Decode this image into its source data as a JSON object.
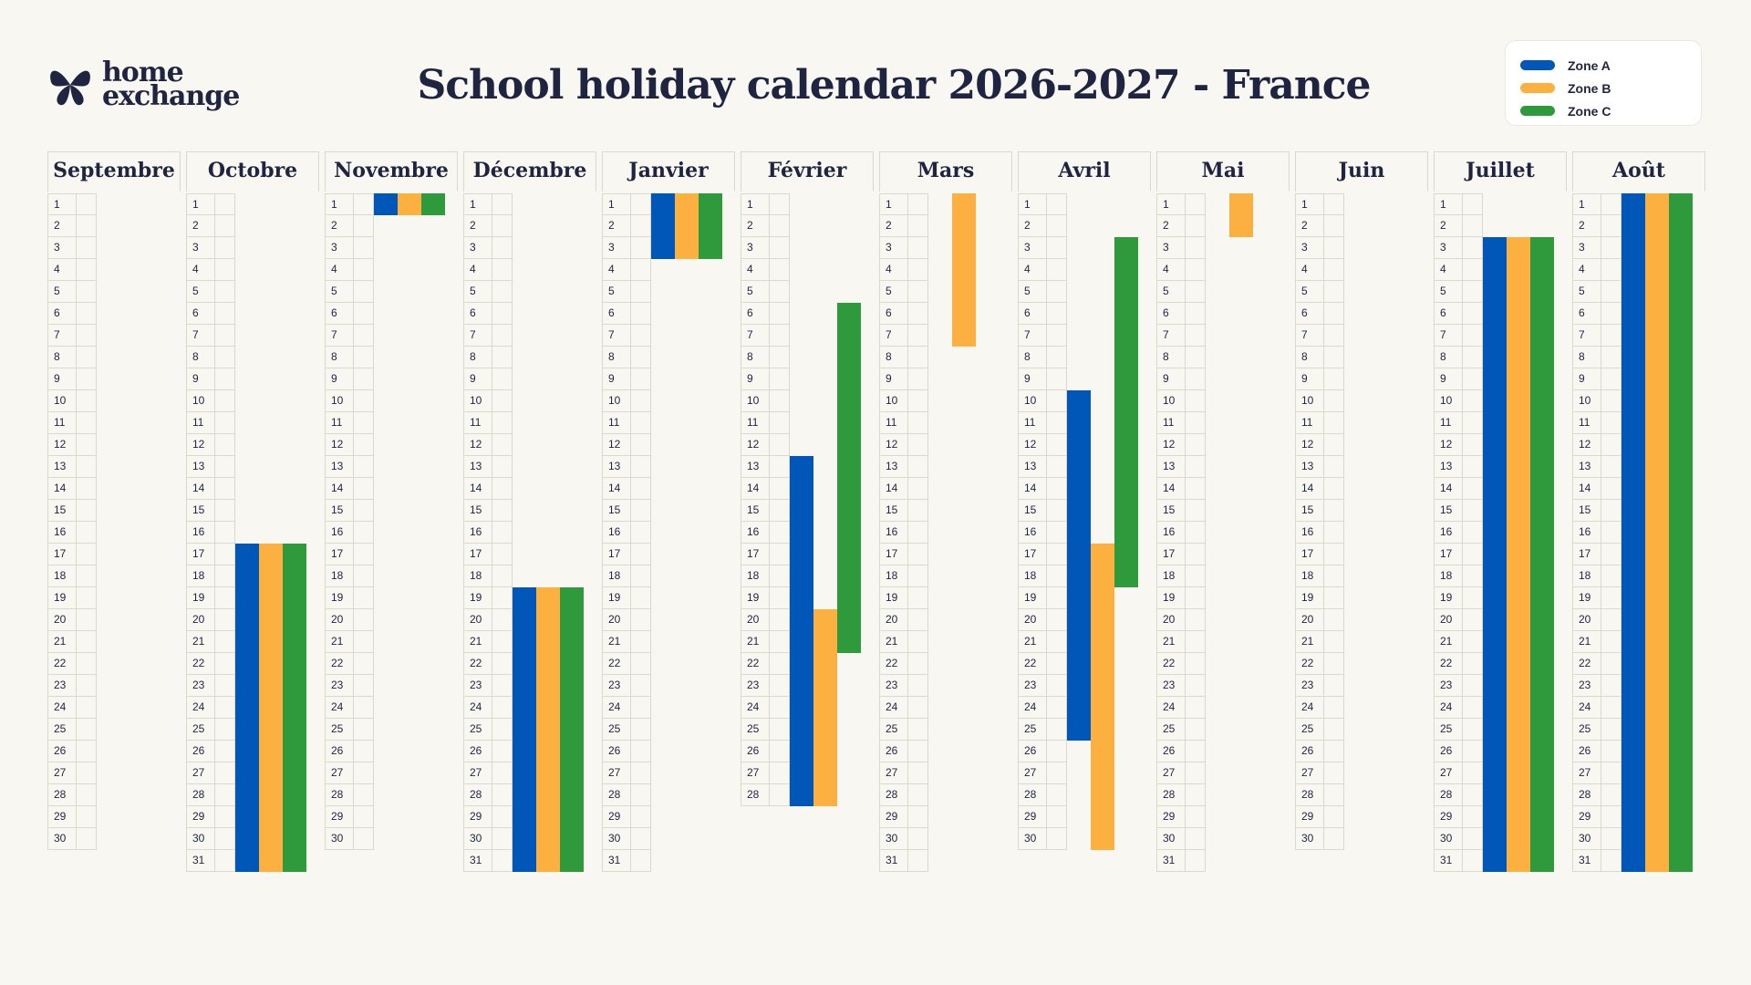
{
  "brand": {
    "line1": "home",
    "line2": "exchange"
  },
  "title": "School holiday calendar 2026-2027 - France",
  "colors": {
    "zone_a": "#0057b8",
    "zone_b": "#fbb040",
    "zone_c": "#2e9a3c"
  },
  "legend": [
    {
      "label": "Zone A",
      "color": "#0057b8"
    },
    {
      "label": "Zone B",
      "color": "#fbb040"
    },
    {
      "label": "Zone C",
      "color": "#2e9a3c"
    }
  ],
  "chart_data": {
    "type": "table",
    "months": [
      {
        "name": "Septembre",
        "days": 30,
        "holidays": []
      },
      {
        "name": "Octobre",
        "days": 31,
        "holidays": [
          {
            "zone": "A",
            "start": 17,
            "end": 31
          },
          {
            "zone": "B",
            "start": 17,
            "end": 31
          },
          {
            "zone": "C",
            "start": 17,
            "end": 31
          }
        ]
      },
      {
        "name": "Novembre",
        "days": 30,
        "holidays": [
          {
            "zone": "A",
            "start": 1,
            "end": 1
          },
          {
            "zone": "B",
            "start": 1,
            "end": 1
          },
          {
            "zone": "C",
            "start": 1,
            "end": 1
          }
        ]
      },
      {
        "name": "Décembre",
        "days": 31,
        "holidays": [
          {
            "zone": "A",
            "start": 19,
            "end": 31
          },
          {
            "zone": "B",
            "start": 19,
            "end": 31
          },
          {
            "zone": "C",
            "start": 19,
            "end": 31
          }
        ]
      },
      {
        "name": "Janvier",
        "days": 31,
        "holidays": [
          {
            "zone": "A",
            "start": 1,
            "end": 3
          },
          {
            "zone": "B",
            "start": 1,
            "end": 3
          },
          {
            "zone": "C",
            "start": 1,
            "end": 3
          }
        ]
      },
      {
        "name": "Février",
        "days": 28,
        "holidays": [
          {
            "zone": "A",
            "start": 13,
            "end": 28
          },
          {
            "zone": "B",
            "start": 20,
            "end": 28
          },
          {
            "zone": "C",
            "start": 6,
            "end": 21
          }
        ]
      },
      {
        "name": "Mars",
        "days": 31,
        "holidays": [
          {
            "zone": "B",
            "start": 1,
            "end": 7
          }
        ]
      },
      {
        "name": "Avril",
        "days": 30,
        "holidays": [
          {
            "zone": "A",
            "start": 10,
            "end": 25
          },
          {
            "zone": "B",
            "start": 17,
            "end": 30
          },
          {
            "zone": "C",
            "start": 3,
            "end": 18
          }
        ]
      },
      {
        "name": "Mai",
        "days": 31,
        "holidays": [
          {
            "zone": "B",
            "start": 1,
            "end": 2
          }
        ]
      },
      {
        "name": "Juin",
        "days": 30,
        "holidays": []
      },
      {
        "name": "Juillet",
        "days": 31,
        "holidays": [
          {
            "zone": "A",
            "start": 3,
            "end": 31
          },
          {
            "zone": "B",
            "start": 3,
            "end": 31
          },
          {
            "zone": "C",
            "start": 3,
            "end": 31
          }
        ]
      },
      {
        "name": "Août",
        "days": 31,
        "holidays": [
          {
            "zone": "A",
            "start": 1,
            "end": 31
          },
          {
            "zone": "B",
            "start": 1,
            "end": 31
          },
          {
            "zone": "C",
            "start": 1,
            "end": 31
          }
        ]
      }
    ]
  }
}
